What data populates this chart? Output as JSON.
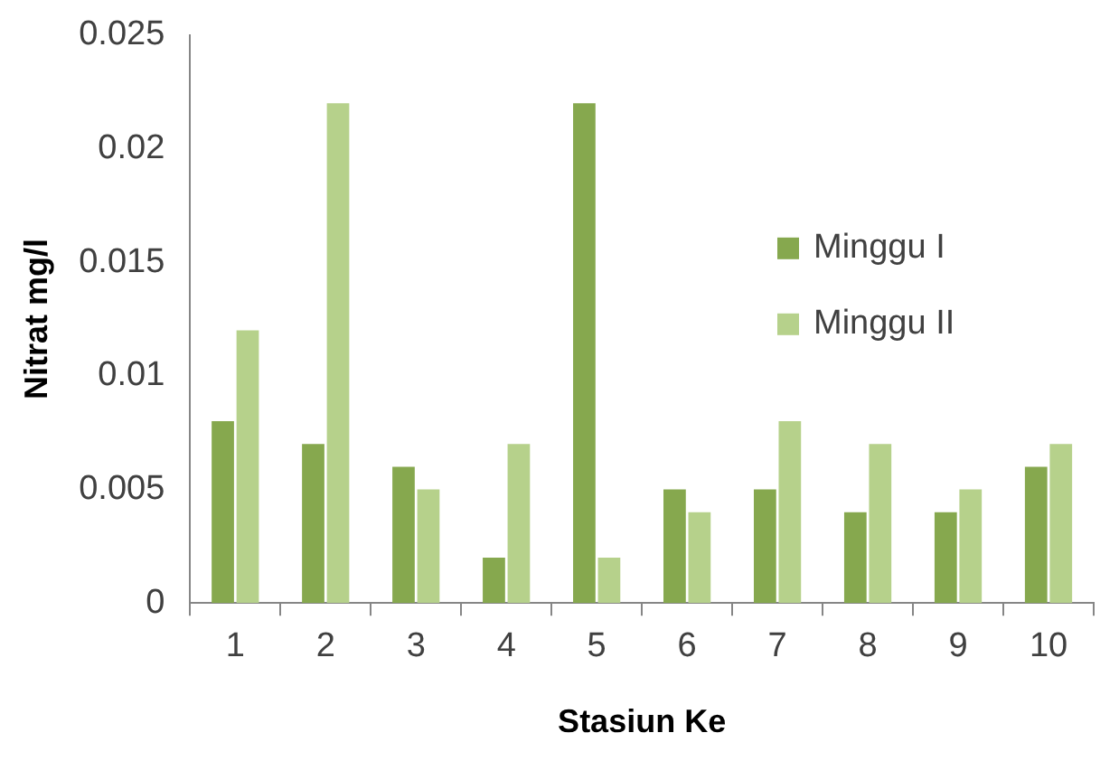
{
  "chart_data": {
    "type": "bar",
    "xlabel": "Stasiun Ke",
    "ylabel": "Nitrat mg/l",
    "categories": [
      "1",
      "2",
      "3",
      "4",
      "5",
      "6",
      "7",
      "8",
      "9",
      "10"
    ],
    "series": [
      {
        "name": "Minggu I",
        "color": "#86a84e",
        "values": [
          0.008,
          0.007,
          0.006,
          0.002,
          0.022,
          0.005,
          0.005,
          0.004,
          0.004,
          0.006
        ]
      },
      {
        "name": "Minggu II",
        "color": "#b6d18b",
        "values": [
          0.012,
          0.022,
          0.005,
          0.007,
          0.002,
          0.004,
          0.008,
          0.007,
          0.005,
          0.007
        ]
      }
    ],
    "ylim": [
      0,
      0.025
    ],
    "yticks": [
      0,
      0.005,
      0.01,
      0.015,
      0.02,
      0.025
    ],
    "grid": false,
    "legend": "right"
  }
}
